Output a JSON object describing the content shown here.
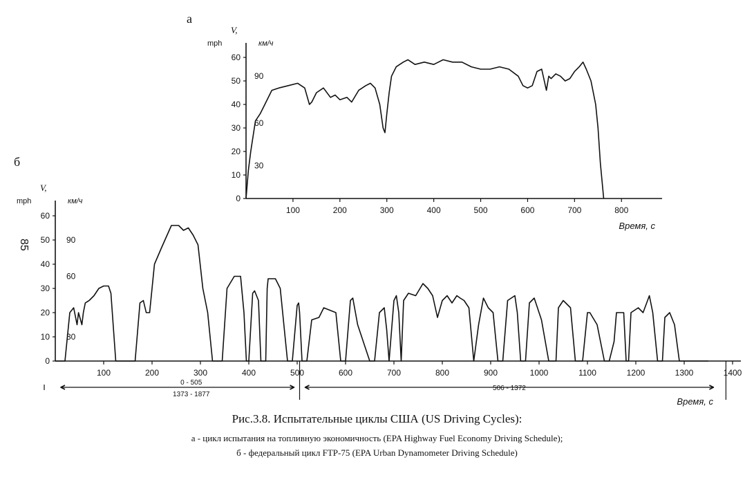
{
  "chart_data": [
    {
      "panel_label": "а",
      "type": "line",
      "ylabel_symbol": "V,",
      "ylabel_mph": "mph",
      "ylabel_kmh": "км/ч",
      "xlabel": "Время, с",
      "xlim": [
        0,
        860
      ],
      "ylim": [
        0,
        60
      ],
      "yticks": [
        0,
        10,
        20,
        30,
        40,
        50,
        60
      ],
      "xticks": [
        100,
        200,
        300,
        400,
        500,
        600,
        700,
        800
      ],
      "kmh_labels": [
        {
          "value": 90,
          "mph": 52
        },
        {
          "value": 60,
          "mph": 32
        },
        {
          "value": 30,
          "mph": 14
        }
      ],
      "series": [
        {
          "x": [
            0,
            5,
            10,
            20,
            30,
            40,
            55,
            70,
            90,
            110,
            125,
            135,
            140,
            150,
            165,
            180,
            190,
            200,
            215,
            225,
            240,
            255,
            265,
            275,
            285,
            292,
            296,
            300,
            305,
            310,
            320,
            335,
            345,
            360,
            380,
            400,
            420,
            440,
            460,
            480,
            500,
            520,
            540,
            560,
            580,
            590,
            600,
            610,
            620,
            630,
            640,
            645,
            650,
            660,
            670,
            680,
            690,
            700,
            710,
            718,
            725,
            735,
            745,
            750,
            755,
            762
          ],
          "y": [
            0,
            12,
            20,
            33,
            36,
            40,
            46,
            47,
            48,
            49,
            47,
            40,
            41,
            45,
            47,
            43,
            44,
            42,
            43,
            41,
            46,
            48,
            49,
            47,
            40,
            30,
            28,
            36,
            45,
            52,
            56,
            58,
            59,
            57,
            58,
            57,
            59,
            58,
            58,
            56,
            55,
            55,
            56,
            55,
            52,
            48,
            47,
            48,
            54,
            55,
            46,
            52,
            51,
            53,
            52,
            50,
            51,
            54,
            56,
            58,
            55,
            50,
            40,
            30,
            15,
            0
          ]
        }
      ]
    },
    {
      "panel_label": "б",
      "type": "line",
      "ylabel_symbol": "V,",
      "ylabel_mph": "mph",
      "ylabel_kmh": "км/ч",
      "xlabel": "Время, с",
      "xlim": [
        0,
        1400
      ],
      "ylim": [
        0,
        60
      ],
      "yticks": [
        0,
        10,
        20,
        30,
        40,
        50,
        60
      ],
      "xticks": [
        100,
        200,
        300,
        400,
        500,
        600,
        700,
        800,
        900,
        1000,
        1100,
        1200,
        1300,
        1400
      ],
      "kmh_labels": [
        {
          "value": 90,
          "mph": 50
        },
        {
          "value": 60,
          "mph": 35
        },
        {
          "value": 30,
          "mph": 10
        }
      ],
      "page_number": "85",
      "bracket_left": {
        "line1": "0 - 505",
        "line2": "1373 - 1877",
        "from": 0,
        "to": 505
      },
      "bracket_right": {
        "line1": "506 - 1372",
        "from": 505,
        "to": 1372
      },
      "series": [
        {
          "x": [
            0,
            20,
            30,
            38,
            45,
            48,
            55,
            58,
            62,
            70,
            80,
            90,
            100,
            110,
            115,
            125,
            165,
            175,
            182,
            188,
            195,
            205,
            220,
            240,
            255,
            265,
            275,
            285,
            295,
            305,
            315,
            325,
            345,
            355,
            370,
            383,
            390,
            395,
            400,
            408,
            412,
            420,
            425,
            435,
            438,
            440,
            455,
            465,
            480,
            490,
            500,
            503,
            505,
            510,
            520,
            530,
            545,
            555,
            580,
            590,
            600,
            610,
            615,
            625,
            650,
            660,
            670,
            680,
            685,
            690,
            700,
            705,
            710,
            715,
            720,
            730,
            745,
            760,
            770,
            780,
            790,
            800,
            810,
            820,
            830,
            837,
            845,
            855,
            865,
            875,
            885,
            895,
            905,
            915,
            925,
            935,
            950,
            955,
            962,
            972,
            980,
            990,
            1005,
            1020,
            1035,
            1040,
            1050,
            1065,
            1075,
            1090,
            1100,
            1105,
            1120,
            1135,
            1145,
            1155,
            1160,
            1175,
            1180,
            1185,
            1190,
            1205,
            1215,
            1228,
            1235,
            1245,
            1255,
            1260,
            1270,
            1280,
            1290,
            1300,
            1305,
            1315,
            1320,
            1330,
            1340,
            1350
          ],
          "y": [
            0,
            0,
            20,
            22,
            15,
            20,
            15,
            20,
            24,
            25,
            27,
            30,
            31,
            31,
            28,
            0,
            0,
            24,
            25,
            20,
            20,
            40,
            47,
            56,
            56,
            54,
            55,
            52,
            48,
            30,
            20,
            0,
            0,
            30,
            35,
            35,
            20,
            0,
            0,
            28,
            29,
            25,
            0,
            0,
            30,
            34,
            34,
            30,
            0,
            0,
            23,
            24,
            20,
            0,
            0,
            17,
            18,
            22,
            20,
            0,
            0,
            25,
            26,
            15,
            0,
            0,
            20,
            22,
            13,
            0,
            25,
            27,
            20,
            0,
            25,
            28,
            27,
            32,
            30,
            27,
            18,
            25,
            27,
            24,
            27,
            26,
            25,
            22,
            0,
            15,
            26,
            22,
            20,
            0,
            0,
            25,
            27,
            20,
            0,
            0,
            24,
            26,
            17,
            0,
            0,
            22,
            25,
            22,
            0,
            0,
            20,
            20,
            15,
            0,
            0,
            8,
            20,
            20,
            0,
            0,
            20,
            22,
            20,
            27,
            20,
            0,
            0,
            18,
            20,
            15,
            0,
            0,
            0,
            0,
            0,
            0,
            0,
            0
          ]
        }
      ]
    }
  ],
  "caption": {
    "main": "Рис.3.8. Испытательные циклы США (US Driving Cycles):",
    "line_a": "а - цикл испытания на топливную экономичность (EPA Highway Fuel Economy Driving Schedule);",
    "line_b": "б - федеральный цикл FTP-75 (EPA Urban Dynamometer Driving Schedule)"
  }
}
